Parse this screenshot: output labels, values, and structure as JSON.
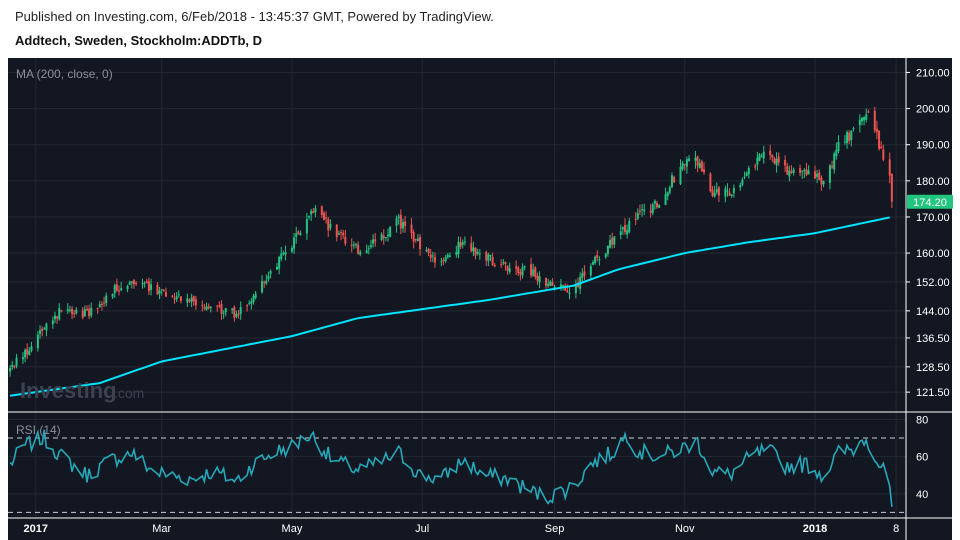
{
  "header": {
    "published": "Published on Investing.com, 6/Feb/2018 - 13:45:37 GMT, Powered by TradingView.",
    "instrument": "Addtech, Sweden, Stockholm:ADDTb, D"
  },
  "watermark": {
    "brand": "Investing",
    "suffix": ".com"
  },
  "colors": {
    "background": "#131722",
    "up": "#26c281",
    "down": "#ef5350",
    "ma": "#00e5ff",
    "rsi": "#26a8b8",
    "grid": "#242833",
    "price_badge": "#22c57d"
  },
  "chart_data": [
    {
      "type": "candlestick",
      "indicator_label": "MA (200, close, 0)",
      "ylim": [
        116,
        214
      ],
      "y_ticks": [
        210.0,
        200.0,
        190.0,
        180.0,
        170.0,
        160.0,
        152.0,
        144.0,
        136.5,
        128.5,
        121.5
      ],
      "y_tick_labels": [
        "210.00",
        "200.00",
        "190.00",
        "180.00",
        "170.00",
        "160.00",
        "152.00",
        "144.00",
        "136.50",
        "128.50",
        "121.50"
      ],
      "last_price": 174.2,
      "last_price_label": "174.20",
      "x_tick_labels": [
        "2017",
        "Mar",
        "May",
        "Jul",
        "Sep",
        "Nov",
        "2018",
        "8"
      ],
      "close_anchors": [
        [
          "2016-12-20",
          128
        ],
        [
          "2016-12-28",
          133
        ],
        [
          "2017-01-05",
          140
        ],
        [
          "2017-01-15",
          145
        ],
        [
          "2017-01-25",
          143
        ],
        [
          "2017-02-05",
          149
        ],
        [
          "2017-02-15",
          153
        ],
        [
          "2017-02-25",
          150
        ],
        [
          "2017-03-05",
          149
        ],
        [
          "2017-03-15",
          147
        ],
        [
          "2017-03-25",
          145
        ],
        [
          "2017-04-05",
          143
        ],
        [
          "2017-04-15",
          150
        ],
        [
          "2017-04-25",
          158
        ],
        [
          "2017-05-05",
          166
        ],
        [
          "2017-05-12",
          172
        ],
        [
          "2017-05-20",
          166
        ],
        [
          "2017-06-01",
          161
        ],
        [
          "2017-06-10",
          163
        ],
        [
          "2017-06-20",
          169
        ],
        [
          "2017-06-30",
          162
        ],
        [
          "2017-07-10",
          157
        ],
        [
          "2017-07-20",
          163
        ],
        [
          "2017-07-30",
          159
        ],
        [
          "2017-08-10",
          156
        ],
        [
          "2017-08-20",
          155
        ],
        [
          "2017-08-30",
          151
        ],
        [
          "2017-09-10",
          150
        ],
        [
          "2017-09-20",
          158
        ],
        [
          "2017-09-30",
          164
        ],
        [
          "2017-10-10",
          170
        ],
        [
          "2017-10-20",
          174
        ],
        [
          "2017-10-30",
          184
        ],
        [
          "2017-11-05",
          187
        ],
        [
          "2017-11-15",
          176
        ],
        [
          "2017-11-25",
          178
        ],
        [
          "2017-12-05",
          186
        ],
        [
          "2017-12-12",
          187
        ],
        [
          "2017-12-20",
          182
        ],
        [
          "2017-12-30",
          183
        ],
        [
          "2018-01-05",
          179
        ],
        [
          "2018-01-12",
          190
        ],
        [
          "2018-01-20",
          194
        ],
        [
          "2018-01-26",
          200
        ],
        [
          "2018-01-30",
          192
        ],
        [
          "2018-02-02",
          186
        ],
        [
          "2018-02-05",
          180
        ],
        [
          "2018-02-06",
          174.2
        ]
      ],
      "ma_anchors": [
        [
          "2016-12-20",
          120.5
        ],
        [
          "2017-01-31",
          124
        ],
        [
          "2017-03-01",
          130
        ],
        [
          "2017-05-01",
          137
        ],
        [
          "2017-06-01",
          142
        ],
        [
          "2017-08-01",
          147
        ],
        [
          "2017-09-10",
          151
        ],
        [
          "2017-10-01",
          155.5
        ],
        [
          "2017-11-01",
          160
        ],
        [
          "2017-12-01",
          163
        ],
        [
          "2018-01-01",
          165.5
        ],
        [
          "2018-02-06",
          170
        ]
      ]
    },
    {
      "type": "line",
      "indicator_label": "RSI (14)",
      "ylim": [
        27,
        84
      ],
      "y_ticks": [
        80,
        60,
        40
      ],
      "y_tick_labels": [
        "80",
        "60",
        "40"
      ],
      "reference_lines": [
        70,
        30
      ],
      "rsi_anchors": [
        [
          "2016-12-20",
          56
        ],
        [
          "2016-12-27",
          66
        ],
        [
          "2017-01-05",
          70
        ],
        [
          "2017-01-13",
          60
        ],
        [
          "2017-01-25",
          50
        ],
        [
          "2017-02-05",
          58
        ],
        [
          "2017-02-15",
          62
        ],
        [
          "2017-02-25",
          52
        ],
        [
          "2017-03-05",
          50
        ],
        [
          "2017-03-15",
          48
        ],
        [
          "2017-03-25",
          52
        ],
        [
          "2017-04-05",
          47
        ],
        [
          "2017-04-12",
          55
        ],
        [
          "2017-04-22",
          62
        ],
        [
          "2017-05-02",
          66
        ],
        [
          "2017-05-10",
          72
        ],
        [
          "2017-05-20",
          58
        ],
        [
          "2017-06-01",
          53
        ],
        [
          "2017-06-10",
          56
        ],
        [
          "2017-06-20",
          62
        ],
        [
          "2017-06-30",
          50
        ],
        [
          "2017-07-10",
          48
        ],
        [
          "2017-07-20",
          58
        ],
        [
          "2017-07-30",
          50
        ],
        [
          "2017-08-10",
          48
        ],
        [
          "2017-08-20",
          42
        ],
        [
          "2017-08-28",
          38
        ],
        [
          "2017-09-10",
          44
        ],
        [
          "2017-09-18",
          56
        ],
        [
          "2017-09-28",
          62
        ],
        [
          "2017-10-05",
          72
        ],
        [
          "2017-10-10",
          63
        ],
        [
          "2017-10-20",
          60
        ],
        [
          "2017-10-30",
          64
        ],
        [
          "2017-11-07",
          68
        ],
        [
          "2017-11-14",
          52
        ],
        [
          "2017-11-22",
          50
        ],
        [
          "2017-12-02",
          60
        ],
        [
          "2017-12-10",
          64
        ],
        [
          "2017-12-18",
          55
        ],
        [
          "2017-12-28",
          56
        ],
        [
          "2018-01-05",
          50
        ],
        [
          "2018-01-12",
          62
        ],
        [
          "2018-01-19",
          64
        ],
        [
          "2018-01-25",
          71
        ],
        [
          "2018-01-30",
          58
        ],
        [
          "2018-02-02",
          52
        ],
        [
          "2018-02-05",
          44
        ],
        [
          "2018-02-06",
          33
        ]
      ]
    }
  ]
}
